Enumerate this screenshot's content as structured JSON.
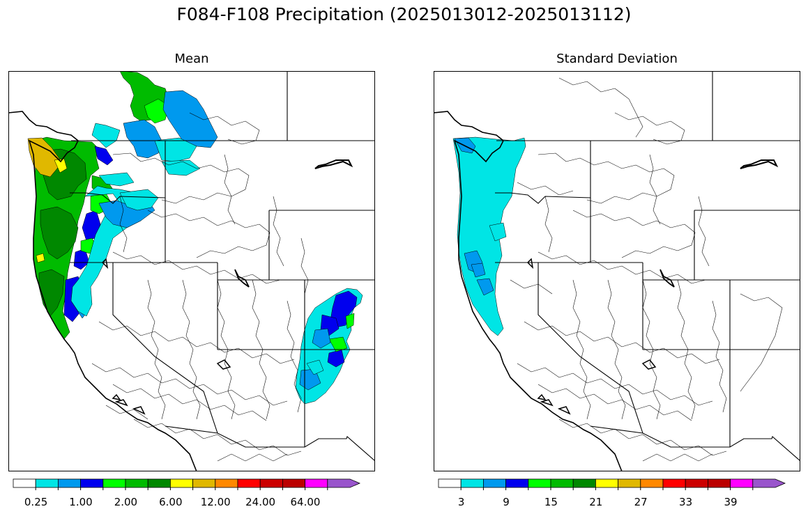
{
  "figure": {
    "title": "F084-F108 Precipitation (2025013012-2025013112)"
  },
  "panels": [
    {
      "id": "mean",
      "title": "Mean"
    },
    {
      "id": "std",
      "title": "Standard Deviation"
    }
  ],
  "colorbars": {
    "colors": [
      "#ffffff",
      "#00e5e5",
      "#0099ee",
      "#0000ee",
      "#00ff00",
      "#00bb00",
      "#008800",
      "#ffff00",
      "#e0b800",
      "#ff8800",
      "#ff0000",
      "#cc0000",
      "#bb0000",
      "#ff00ff",
      "#9955cc"
    ],
    "mean_tick_labels": [
      "0.25",
      "1.00",
      "2.00",
      "6.00",
      "12.00",
      "24.00",
      "64.00"
    ],
    "std_tick_labels": [
      "3",
      "9",
      "15",
      "21",
      "27",
      "33",
      "39"
    ]
  },
  "map_colors": {
    "coast": "#000000",
    "border": "#000000",
    "basin_outline": "#000000"
  }
}
